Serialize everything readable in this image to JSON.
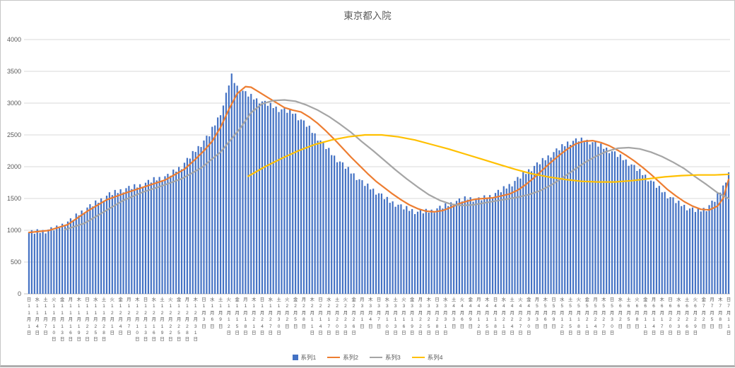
{
  "chart": {
    "title": "東京都入院"
  },
  "colors": {
    "gridline": "#d9d9d9",
    "axis_line": "#bfbfbf",
    "text": "#595959",
    "frame_border": "#c6c6c6"
  },
  "chart_data": {
    "type": "bar",
    "title": "東京都入院",
    "ylim": [
      0,
      4000
    ],
    "y_ticks": [
      0,
      500,
      1000,
      1500,
      2000,
      2500,
      3000,
      3500,
      4000
    ],
    "grid": true,
    "legend_position": "bottom",
    "label_every": 3,
    "x_labels": [
      "日11月1日",
      "水11月4日",
      "土11月7日",
      "火11月10日",
      "金11月13日",
      "月11月16日",
      "木11月19日",
      "日11月22日",
      "水11月25日",
      "土11月28日",
      "火12月1日",
      "金12月4日",
      "月12月7日",
      "木12月10日",
      "日12月13日",
      "水12月16日",
      "土12月19日",
      "火12月22日",
      "金12月25日",
      "月12月28日",
      "木12月31日",
      "日1月3日",
      "水1月6日",
      "土1月9日",
      "火1月12日",
      "金1月15日",
      "月1月18日",
      "木1月21日",
      "日1月24日",
      "水1月27日",
      "土1月30日",
      "火2月2日",
      "金2月5日",
      "月2月8日",
      "木2月11日",
      "日2月14日",
      "水2月17日",
      "土2月20日",
      "火2月23日",
      "金2月26日",
      "月3月1日",
      "木3月4日",
      "日3月7日",
      "水3月10日",
      "土3月13日",
      "火3月16日",
      "金3月19日",
      "月3月22日",
      "木3月25日",
      "日3月28日",
      "水3月31日",
      "土4月3日",
      "火4月6日",
      "金4月9日",
      "月4月12日",
      "木4月15日",
      "日4月18日",
      "水4月21日",
      "土4月24日",
      "火4月27日",
      "金4月30日",
      "月5月3日",
      "木5月6日",
      "日5月9日",
      "水5月12日",
      "土5月15日",
      "火5月18日",
      "金5月21日",
      "月5月24日",
      "木5月27日",
      "日5月30日",
      "水6月2日",
      "土6月5日",
      "火6月8日",
      "金6月11日",
      "月6月14日",
      "木6月17日",
      "日6月20日",
      "水6月23日",
      "土6月26日",
      "火6月29日",
      "金7月2日",
      "月7月5日",
      "木7月8日",
      "日7月11日"
    ],
    "series": [
      {
        "name": "系列1",
        "type": "bar",
        "color": "#4472C4",
        "values": [
          972,
          1002,
          946,
          1017,
          958,
          1005,
          950,
          1012,
          1048,
          998,
          1075,
          1036,
          1103,
          1062,
          1138,
          1188,
          1162,
          1263,
          1234,
          1311,
          1280,
          1358,
          1410,
          1376,
          1469,
          1432,
          1502,
          1465,
          1544,
          1598,
          1553,
          1635,
          1587,
          1645,
          1595,
          1662,
          1698,
          1648,
          1725,
          1672,
          1725,
          1678,
          1748,
          1792,
          1750,
          1835,
          1784,
          1839,
          1786,
          1850,
          1888,
          1858,
          1955,
          1922,
          1995,
          1960,
          2062,
          2138,
          2128,
          2245,
          2232,
          2325,
          2310,
          2412,
          2488,
          2478,
          2628,
          2649,
          2775,
          2810,
          2962,
          3163,
          3278,
          3465,
          3317,
          3275,
          3177,
          3195,
          3188,
          3103,
          3145,
          3057,
          3075,
          2992,
          3027,
          3036,
          2958,
          3005,
          2922,
          2945,
          2860,
          2902,
          2918,
          2848,
          2905,
          2832,
          2835,
          2730,
          2742,
          2728,
          2628,
          2645,
          2532,
          2525,
          2410,
          2412,
          2388,
          2278,
          2295,
          2182,
          2175,
          2070,
          2082,
          2068,
          1968,
          1995,
          1892,
          1895,
          1790,
          1802,
          1788,
          1698,
          1735,
          1642,
          1655,
          1560,
          1582,
          1578,
          1488,
          1525,
          1432,
          1455,
          1370,
          1402,
          1408,
          1328,
          1381,
          1304,
          1333,
          1254,
          1292,
          1322,
          1266,
          1337,
          1278,
          1325,
          1276,
          1344,
          1386,
          1342,
          1425,
          1380,
          1440,
          1393,
          1462,
          1501,
          1453,
          1533,
          1482,
          1520,
          1450,
          1497,
          1518,
          1471,
          1550,
          1500,
          1555,
          1513,
          1587,
          1636,
          1598,
          1693,
          1657,
          1728,
          1690,
          1777,
          1838,
          1813,
          1915,
          1885,
          1960,
          1928,
          2012,
          2068,
          2038,
          2135,
          2102,
          2178,
          2145,
          2230,
          2288,
          2258,
          2355,
          2322,
          2395,
          2343,
          2407,
          2446,
          2398,
          2458,
          2387,
          2423,
          2350,
          2385,
          2393,
          2316,
          2365,
          2280,
          2300,
          2213,
          2242,
          2241,
          2153,
          2193,
          2102,
          2113,
          2015,
          2035,
          2028,
          1933,
          1965,
          1867,
          1875,
          1770,
          1782,
          1768,
          1668,
          1698,
          1597,
          1603,
          1500,
          1522,
          1518,
          1428,
          1465,
          1380,
          1400,
          1313,
          1342,
          1358,
          1288,
          1345,
          1295,
          1352,
          1300,
          1395,
          1465,
          1448,
          1585,
          1592,
          1705,
          1750,
          1912
        ]
      },
      {
        "name": "系列2",
        "type": "line",
        "color": "#ED7D31",
        "points": [
          [
            0,
            965
          ],
          [
            7,
            995
          ],
          [
            14,
            1090
          ],
          [
            21,
            1300
          ],
          [
            28,
            1480
          ],
          [
            35,
            1590
          ],
          [
            42,
            1690
          ],
          [
            49,
            1790
          ],
          [
            56,
            1960
          ],
          [
            60,
            2120
          ],
          [
            63,
            2250
          ],
          [
            66,
            2400
          ],
          [
            69,
            2620
          ],
          [
            72,
            2900
          ],
          [
            75,
            3150
          ],
          [
            78,
            3260
          ],
          [
            80,
            3250
          ],
          [
            83,
            3170
          ],
          [
            86,
            3090
          ],
          [
            89,
            3010
          ],
          [
            92,
            2930
          ],
          [
            95,
            2890
          ],
          [
            98,
            2860
          ],
          [
            101,
            2780
          ],
          [
            104,
            2680
          ],
          [
            107,
            2560
          ],
          [
            110,
            2430
          ],
          [
            113,
            2290
          ],
          [
            116,
            2150
          ],
          [
            119,
            2020
          ],
          [
            122,
            1890
          ],
          [
            125,
            1770
          ],
          [
            128,
            1670
          ],
          [
            131,
            1570
          ],
          [
            134,
            1480
          ],
          [
            137,
            1400
          ],
          [
            140,
            1340
          ],
          [
            143,
            1300
          ],
          [
            146,
            1290
          ],
          [
            149,
            1310
          ],
          [
            152,
            1360
          ],
          [
            155,
            1420
          ],
          [
            158,
            1460
          ],
          [
            161,
            1490
          ],
          [
            164,
            1500
          ],
          [
            167,
            1510
          ],
          [
            170,
            1540
          ],
          [
            173,
            1570
          ],
          [
            176,
            1630
          ],
          [
            179,
            1720
          ],
          [
            182,
            1830
          ],
          [
            185,
            1950
          ],
          [
            188,
            2070
          ],
          [
            191,
            2180
          ],
          [
            194,
            2280
          ],
          [
            197,
            2360
          ],
          [
            200,
            2400
          ],
          [
            203,
            2410
          ],
          [
            206,
            2380
          ],
          [
            209,
            2330
          ],
          [
            212,
            2260
          ],
          [
            215,
            2180
          ],
          [
            218,
            2090
          ],
          [
            221,
            1990
          ],
          [
            224,
            1880
          ],
          [
            227,
            1760
          ],
          [
            230,
            1640
          ],
          [
            233,
            1540
          ],
          [
            236,
            1450
          ],
          [
            239,
            1380
          ],
          [
            242,
            1330
          ],
          [
            245,
            1320
          ],
          [
            248,
            1380
          ],
          [
            250,
            1500
          ],
          [
            252,
            1800
          ]
        ]
      },
      {
        "name": "系列3",
        "type": "line",
        "color": "#A5A5A5",
        "points": [
          [
            13,
            1010
          ],
          [
            20,
            1110
          ],
          [
            27,
            1290
          ],
          [
            34,
            1470
          ],
          [
            41,
            1600
          ],
          [
            48,
            1700
          ],
          [
            55,
            1810
          ],
          [
            62,
            1980
          ],
          [
            69,
            2230
          ],
          [
            76,
            2600
          ],
          [
            80,
            2850
          ],
          [
            84,
            2990
          ],
          [
            88,
            3040
          ],
          [
            92,
            3050
          ],
          [
            96,
            3030
          ],
          [
            100,
            2970
          ],
          [
            104,
            2890
          ],
          [
            108,
            2790
          ],
          [
            112,
            2670
          ],
          [
            116,
            2540
          ],
          [
            120,
            2390
          ],
          [
            124,
            2250
          ],
          [
            128,
            2100
          ],
          [
            132,
            1950
          ],
          [
            136,
            1810
          ],
          [
            140,
            1680
          ],
          [
            144,
            1560
          ],
          [
            148,
            1470
          ],
          [
            152,
            1410
          ],
          [
            156,
            1390
          ],
          [
            160,
            1400
          ],
          [
            164,
            1430
          ],
          [
            168,
            1460
          ],
          [
            172,
            1490
          ],
          [
            176,
            1520
          ],
          [
            180,
            1560
          ],
          [
            184,
            1620
          ],
          [
            188,
            1710
          ],
          [
            192,
            1820
          ],
          [
            196,
            1940
          ],
          [
            200,
            2060
          ],
          [
            204,
            2160
          ],
          [
            208,
            2240
          ],
          [
            212,
            2290
          ],
          [
            216,
            2300
          ],
          [
            220,
            2280
          ],
          [
            224,
            2230
          ],
          [
            228,
            2160
          ],
          [
            232,
            2070
          ],
          [
            236,
            1970
          ],
          [
            240,
            1840
          ],
          [
            244,
            1720
          ],
          [
            248,
            1590
          ],
          [
            252,
            1500
          ]
        ]
      },
      {
        "name": "系列4",
        "type": "line",
        "color": "#FFC000",
        "points": [
          [
            79,
            1850
          ],
          [
            85,
            2000
          ],
          [
            91,
            2130
          ],
          [
            97,
            2250
          ],
          [
            103,
            2350
          ],
          [
            109,
            2420
          ],
          [
            115,
            2470
          ],
          [
            121,
            2500
          ],
          [
            127,
            2500
          ],
          [
            133,
            2470
          ],
          [
            139,
            2420
          ],
          [
            145,
            2350
          ],
          [
            151,
            2280
          ],
          [
            157,
            2200
          ],
          [
            163,
            2120
          ],
          [
            169,
            2040
          ],
          [
            175,
            1960
          ],
          [
            181,
            1890
          ],
          [
            187,
            1840
          ],
          [
            193,
            1800
          ],
          [
            199,
            1770
          ],
          [
            205,
            1760
          ],
          [
            211,
            1760
          ],
          [
            217,
            1780
          ],
          [
            223,
            1810
          ],
          [
            229,
            1840
          ],
          [
            235,
            1860
          ],
          [
            241,
            1870
          ],
          [
            247,
            1870
          ],
          [
            252,
            1880
          ]
        ]
      }
    ]
  }
}
